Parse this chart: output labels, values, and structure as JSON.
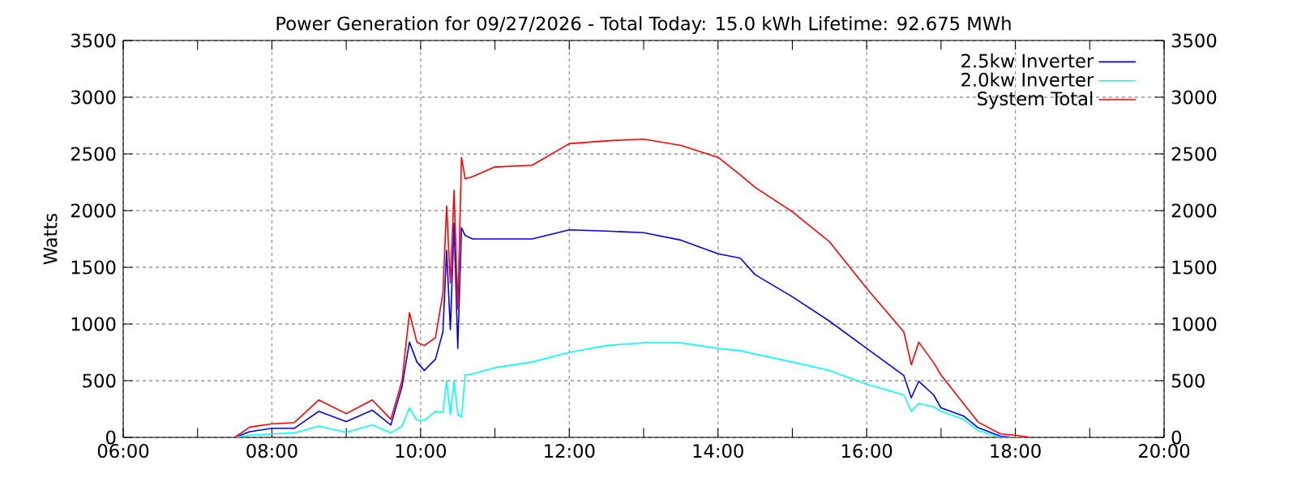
{
  "chart_data": {
    "type": "line",
    "title": "Power Generation for 09/27/2026 - Total Today: 15.0 kWh   Lifetime: 92.675 MWh",
    "ylabel": "Watts",
    "x": [
      7.5,
      7.7,
      8.0,
      8.3,
      8.63,
      9.0,
      9.35,
      9.6,
      9.75,
      9.85,
      9.95,
      10.05,
      10.2,
      10.3,
      10.35,
      10.4,
      10.45,
      10.5,
      10.55,
      10.6,
      10.7,
      11.0,
      11.5,
      12.0,
      12.5,
      13.0,
      13.5,
      14.0,
      14.3,
      14.5,
      15.0,
      15.5,
      16.0,
      16.5,
      16.6,
      16.7,
      16.9,
      17.0,
      17.3,
      17.5,
      17.8,
      18.0,
      18.2
    ],
    "series": [
      {
        "name": "2.5kw Inverter",
        "color": "#0000ff",
        "values": [
          0,
          50,
          80,
          80,
          230,
          140,
          240,
          110,
          450,
          840,
          665,
          590,
          690,
          930,
          1650,
          950,
          1890,
          785,
          1850,
          1780,
          1750,
          1750,
          1750,
          1830,
          1820,
          1805,
          1740,
          1620,
          1580,
          1435,
          1240,
          1025,
          785,
          545,
          350,
          495,
          375,
          260,
          190,
          85,
          10,
          0,
          0
        ]
      },
      {
        "name": "2.0kw Inverter",
        "color": "#00ffff",
        "values": [
          0,
          20,
          30,
          40,
          100,
          45,
          110,
          40,
          100,
          260,
          150,
          150,
          230,
          220,
          500,
          200,
          500,
          200,
          180,
          550,
          560,
          615,
          665,
          750,
          810,
          835,
          835,
          785,
          765,
          735,
          665,
          590,
          470,
          375,
          230,
          300,
          270,
          230,
          160,
          60,
          0,
          0,
          0
        ]
      },
      {
        "name": "System Total",
        "color": "#ff0000",
        "values": [
          0,
          90,
          120,
          130,
          330,
          210,
          330,
          160,
          500,
          1100,
          840,
          810,
          880,
          1270,
          2040,
          1360,
          2180,
          1130,
          2470,
          2280,
          2300,
          2385,
          2400,
          2590,
          2615,
          2630,
          2575,
          2470,
          2315,
          2205,
          1990,
          1725,
          1315,
          930,
          640,
          840,
          660,
          550,
          300,
          135,
          30,
          20,
          0
        ]
      }
    ],
    "xlim": [
      6,
      20
    ],
    "xticks": [
      {
        "value": 6,
        "label": "06:00"
      },
      {
        "value": 7,
        "label": null
      },
      {
        "value": 8,
        "label": "08:00"
      },
      {
        "value": 9,
        "label": null
      },
      {
        "value": 10,
        "label": "10:00"
      },
      {
        "value": 11,
        "label": null
      },
      {
        "value": 12,
        "label": "12:00"
      },
      {
        "value": 13,
        "label": null
      },
      {
        "value": 14,
        "label": "14:00"
      },
      {
        "value": 15,
        "label": null
      },
      {
        "value": 16,
        "label": "16:00"
      },
      {
        "value": 17,
        "label": null
      },
      {
        "value": 18,
        "label": "18:00"
      },
      {
        "value": 19,
        "label": null
      },
      {
        "value": 20,
        "label": "20:00"
      }
    ],
    "ylim": [
      0,
      3500
    ],
    "yticks": [
      0,
      500,
      1000,
      1500,
      2000,
      2500,
      3000,
      3500
    ],
    "y2lim": [
      0,
      3500
    ],
    "y2ticks": [
      0,
      500,
      1000,
      1500,
      2000,
      2500,
      3000,
      3500
    ],
    "grid": true,
    "legend": "top right"
  }
}
